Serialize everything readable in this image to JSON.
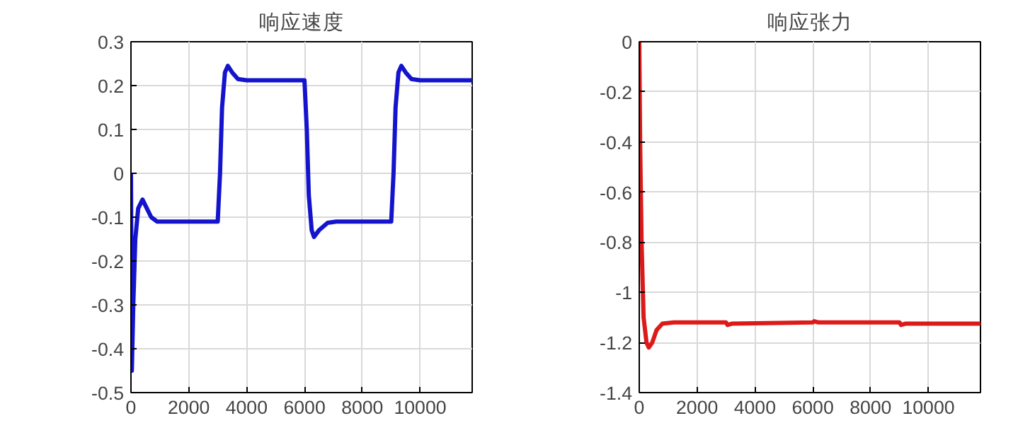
{
  "chart_data": [
    {
      "type": "line",
      "title": "响应速度",
      "xlim": [
        0,
        11800
      ],
      "xticks": [
        0,
        2000,
        4000,
        6000,
        8000,
        10000
      ],
      "ylim": [
        -0.5,
        0.3
      ],
      "yticks": [
        -0.5,
        -0.4,
        -0.3,
        -0.2,
        -0.1,
        0,
        0.1,
        0.2,
        0.3
      ],
      "grid": true,
      "x": [
        0,
        30,
        80,
        150,
        250,
        400,
        550,
        700,
        900,
        3000,
        3080,
        3150,
        3250,
        3350,
        3500,
        3700,
        4000,
        6000,
        6080,
        6150,
        6250,
        6330,
        6500,
        6800,
        7100,
        9000,
        9080,
        9150,
        9250,
        9350,
        9500,
        9700,
        10000,
        11800
      ],
      "series": [
        {
          "color": "#1414cc",
          "values": [
            0,
            -0.45,
            -0.3,
            -0.15,
            -0.08,
            -0.06,
            -0.08,
            -0.1,
            -0.11,
            -0.11,
            0,
            0.15,
            0.23,
            0.245,
            0.23,
            0.215,
            0.212,
            0.212,
            0.1,
            -0.05,
            -0.13,
            -0.145,
            -0.13,
            -0.113,
            -0.11,
            -0.11,
            0,
            0.15,
            0.23,
            0.245,
            0.23,
            0.215,
            0.212,
            0.212
          ]
        }
      ]
    },
    {
      "type": "line",
      "title": "响应张力",
      "xlim": [
        0,
        11800
      ],
      "xticks": [
        0,
        2000,
        4000,
        6000,
        8000,
        10000
      ],
      "ylim": [
        -1.4,
        0
      ],
      "yticks": [
        -1.4,
        -1.2,
        -1,
        -0.8,
        -0.6,
        -0.4,
        -0.2,
        0
      ],
      "grid": true,
      "x": [
        0,
        30,
        80,
        150,
        250,
        330,
        450,
        600,
        800,
        1200,
        3000,
        3050,
        3200,
        6000,
        6050,
        6200,
        9000,
        9050,
        9200,
        11800
      ],
      "series": [
        {
          "color": "#dd1a1a",
          "values": [
            0,
            -0.4,
            -0.8,
            -1.1,
            -1.2,
            -1.22,
            -1.2,
            -1.15,
            -1.125,
            -1.12,
            -1.12,
            -1.13,
            -1.125,
            -1.12,
            -1.115,
            -1.12,
            -1.12,
            -1.13,
            -1.125,
            -1.125
          ]
        }
      ]
    }
  ]
}
